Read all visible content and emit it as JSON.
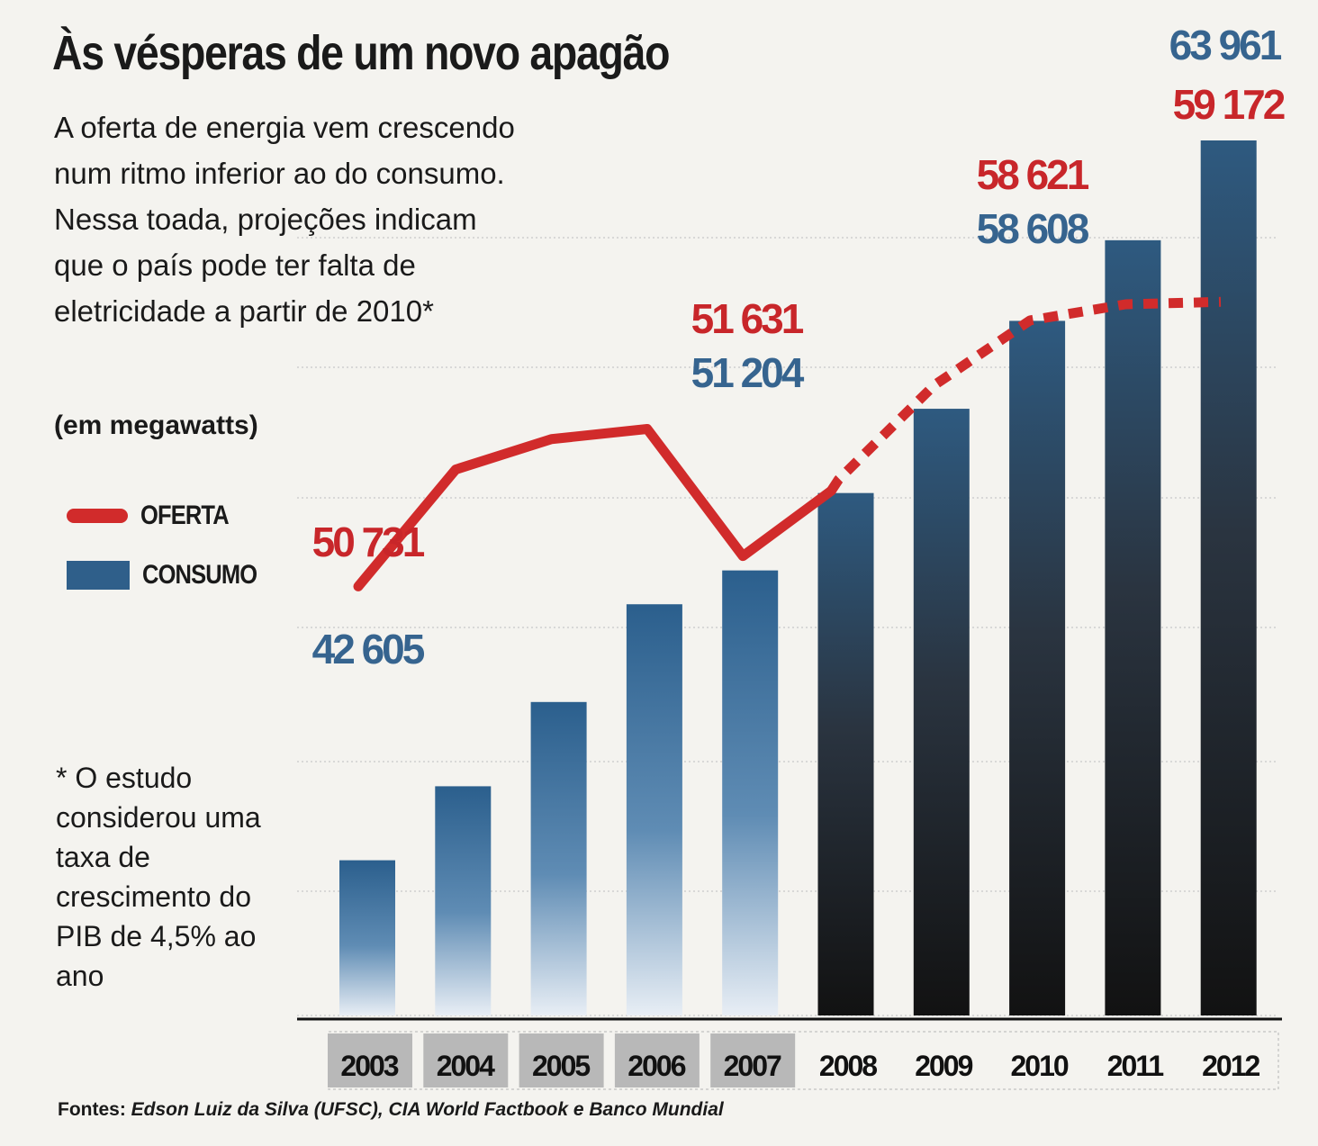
{
  "title": "Às vésperas de um novo apagão",
  "subtitle": "A oferta de energia vem crescendo num ritmo inferior ao do consumo. Nessa toada, projeções indicam que o país pode ter falta de eletricidade a partir de 2010*",
  "unit": "(em megawatts)",
  "legend": {
    "line_label": "OFERTA",
    "bar_label": "CONSUMO"
  },
  "footnote": "* O estudo considerou uma taxa de crescimento do PIB de 4,5% ao ano",
  "source": {
    "label": "Fontes:",
    "text": "Edson Luiz da Silva (UFSC), CIA World Factbook e Banco Mundial"
  },
  "colors": {
    "oferta": "#d12b2b",
    "consumo": "#2f5f8a",
    "consumo_projected": "#1b1b1b",
    "label_blue": "#36648f",
    "label_red": "#c8262a"
  },
  "chart_data": {
    "type": "bar",
    "title": "Às vésperas de um novo apagão",
    "ylabel": "(em megawatts)",
    "categories": [
      "2003",
      "2004",
      "2005",
      "2006",
      "2007",
      "2008",
      "2009",
      "2010",
      "2011",
      "2012"
    ],
    "projected_from": "2008",
    "ylim": [
      0,
      66000
    ],
    "grid": true,
    "legend_position": "left",
    "series": [
      {
        "name": "CONSUMO",
        "type": "bar",
        "values": [
          42605,
          44800,
          47300,
          50200,
          51204,
          53500,
          56000,
          58608,
          61000,
          63961
        ]
      },
      {
        "name": "OFERTA",
        "type": "line",
        "values": [
          50731,
          54200,
          55100,
          55400,
          51631,
          53900,
          56700,
          58621,
          59100,
          59172
        ]
      }
    ],
    "data_labels": [
      {
        "series": "OFERTA",
        "category": "2003",
        "text": "50 731"
      },
      {
        "series": "CONSUMO",
        "category": "2003",
        "text": "42 605"
      },
      {
        "series": "OFERTA",
        "category": "2007",
        "text": "51 631"
      },
      {
        "series": "CONSUMO",
        "category": "2007",
        "text": "51 204"
      },
      {
        "series": "OFERTA",
        "category": "2010",
        "text": "58 621"
      },
      {
        "series": "CONSUMO",
        "category": "2010",
        "text": "58 608"
      },
      {
        "series": "CONSUMO",
        "category": "2012",
        "text": "63 961"
      },
      {
        "series": "OFERTA",
        "category": "2012",
        "text": "59 172"
      }
    ]
  }
}
